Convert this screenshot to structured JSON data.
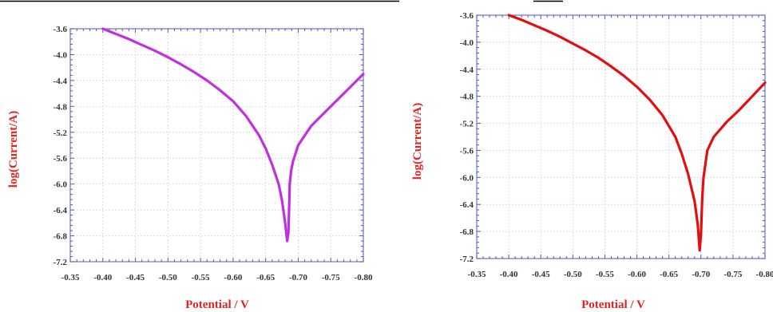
{
  "chart_data": [
    {
      "type": "line",
      "xlabel": "Potential / V",
      "ylabel": "log(Current/A)",
      "x_ticks": [
        "-0.35",
        "-0.40",
        "-0.45",
        "-0.50",
        "-0.55",
        "-0.60",
        "-0.65",
        "-0.70",
        "-0.75",
        "-0.80"
      ],
      "y_ticks": [
        "-3.6",
        "-4.0",
        "-4.4",
        "-4.8",
        "-5.2",
        "-5.6",
        "-6.0",
        "-6.4",
        "-6.8",
        "-7.2"
      ],
      "xlim": [
        -0.35,
        -0.8
      ],
      "ylim": [
        -7.2,
        -3.6
      ],
      "x_reversed": true,
      "grid": true,
      "line_color": "#c030e0",
      "series": [
        {
          "x": [
            -0.4,
            -0.42,
            -0.44,
            -0.46,
            -0.48,
            -0.5,
            -0.52,
            -0.54,
            -0.56,
            -0.58,
            -0.6,
            -0.62,
            -0.64,
            -0.65,
            -0.66,
            -0.67,
            -0.675,
            -0.68,
            -0.683,
            -0.685,
            -0.686,
            -0.687,
            -0.689,
            -0.692,
            -0.7,
            -0.72,
            -0.74,
            -0.76,
            -0.78,
            -0.8
          ],
          "y": [
            -3.6,
            -3.68,
            -3.76,
            -3.85,
            -3.94,
            -4.04,
            -4.15,
            -4.27,
            -4.4,
            -4.55,
            -4.72,
            -4.95,
            -5.25,
            -5.45,
            -5.7,
            -6.0,
            -6.25,
            -6.6,
            -6.88,
            -6.75,
            -6.4,
            -6.0,
            -5.8,
            -5.65,
            -5.4,
            -5.1,
            -4.9,
            -4.7,
            -4.5,
            -4.3
          ]
        }
      ]
    },
    {
      "type": "line",
      "xlabel": "Potential / V",
      "ylabel": "log(Current/A)",
      "x_ticks": [
        "-0.35",
        "-0.40",
        "-0.45",
        "-0.50",
        "-0.55",
        "-0.60",
        "-0.65",
        "-0.70",
        "-0.75",
        "-0.80"
      ],
      "y_ticks": [
        "-3.6",
        "-4.0",
        "-4.4",
        "-4.8",
        "-5.2",
        "-5.6",
        "-6.0",
        "-6.4",
        "-6.8",
        "-7.2"
      ],
      "xlim": [
        -0.35,
        -0.8
      ],
      "ylim": [
        -7.2,
        -3.6
      ],
      "x_reversed": true,
      "grid": true,
      "line_color": "#e01010",
      "series": [
        {
          "x": [
            -0.4,
            -0.42,
            -0.44,
            -0.46,
            -0.48,
            -0.5,
            -0.52,
            -0.54,
            -0.56,
            -0.58,
            -0.6,
            -0.62,
            -0.64,
            -0.66,
            -0.67,
            -0.68,
            -0.69,
            -0.695,
            -0.698,
            -0.7,
            -0.702,
            -0.704,
            -0.707,
            -0.71,
            -0.72,
            -0.74,
            -0.76,
            -0.78,
            -0.8
          ],
          "y": [
            -3.6,
            -3.67,
            -3.75,
            -3.83,
            -3.92,
            -4.02,
            -4.12,
            -4.23,
            -4.36,
            -4.5,
            -4.66,
            -4.85,
            -5.08,
            -5.4,
            -5.65,
            -5.95,
            -6.35,
            -6.7,
            -7.08,
            -6.85,
            -6.3,
            -6.0,
            -5.8,
            -5.6,
            -5.4,
            -5.18,
            -5.0,
            -4.8,
            -4.6
          ]
        }
      ]
    }
  ]
}
